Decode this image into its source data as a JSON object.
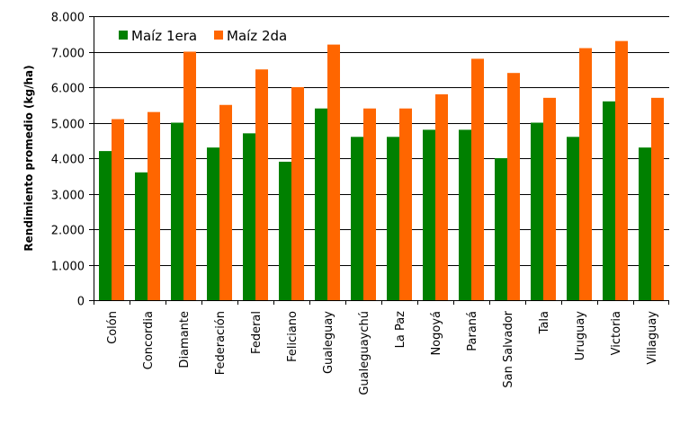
{
  "chart_data": {
    "type": "bar",
    "ylabel": "Rendimiento promedio  (kg/ha)",
    "ylim": [
      0,
      8000
    ],
    "y_ticks": [
      "0",
      "1.000",
      "2.000",
      "3.000",
      "4.000",
      "5.000",
      "6.000",
      "7.000",
      "8.000"
    ],
    "grid": true,
    "legend_position": "top-left",
    "categories": [
      "Colón",
      "Concordia",
      "Diamante",
      "Federación",
      "Federal",
      "Feliciano",
      "Gualeguay",
      "Gualeguaychú",
      "La Paz",
      "Nogoyá",
      "Paraná",
      "San Salvador",
      "Tala",
      "Uruguay",
      "Victoria",
      "Villaguay"
    ],
    "series": [
      {
        "name": "Maíz 1era",
        "color": "#008000",
        "values": [
          4200,
          3600,
          5000,
          4300,
          4700,
          3900,
          5400,
          4600,
          4600,
          4800,
          4800,
          4000,
          5000,
          4600,
          5600,
          4300
        ]
      },
      {
        "name": "Maíz 2da",
        "color": "#ff6600",
        "values": [
          5100,
          5300,
          7000,
          5500,
          6500,
          6000,
          7200,
          5400,
          5400,
          5800,
          6800,
          6400,
          5700,
          7100,
          7300,
          5700
        ]
      }
    ]
  }
}
